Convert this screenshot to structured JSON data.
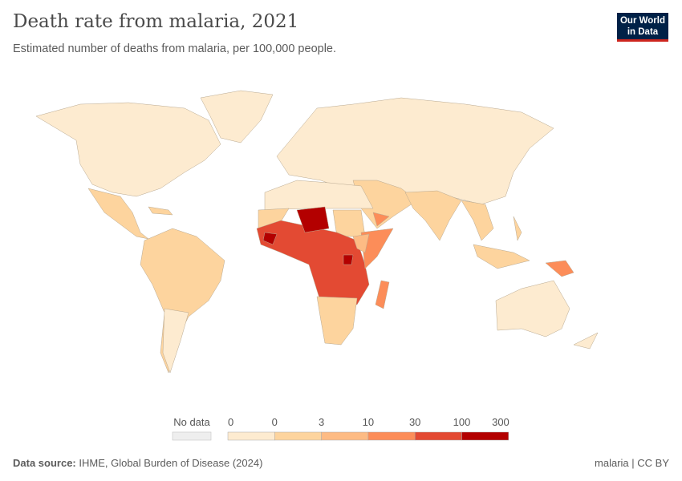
{
  "header": {
    "title": "Death rate from malaria, 2021",
    "subtitle": "Estimated number of deaths from malaria, per 100,000 people.",
    "logo": "Our World in Data"
  },
  "chart_data": {
    "type": "choropleth map",
    "title": "Death rate from malaria, 2021",
    "subtitle": "Estimated number of deaths from malaria, per 100,000 people.",
    "legend": {
      "no_data_label": "No data",
      "bin_labels": [
        "0",
        "0",
        "3",
        "10",
        "30",
        "100",
        "300"
      ],
      "colors": [
        "#fdebd0",
        "#fdd49e",
        "#fdbb84",
        "#fc8d59",
        "#e34a33",
        "#b30000"
      ],
      "no_data_color": "#e8e8e8"
    },
    "regions": [
      {
        "region": "North America, Europe, Russia, China, Australia, North Africa",
        "bin": "0-0"
      },
      {
        "region": "South America, Mexico, Central America, South Asia, Southeast Asia, Southern Africa",
        "bin": "0-3"
      },
      {
        "region": "Horn of Africa, Madagascar, Papua New Guinea",
        "bin": "10-30"
      },
      {
        "region": "Central and West Africa",
        "bin": "30-100"
      },
      {
        "region": "Niger, Sierra Leone, Burkina Faso, Uganda",
        "bin": "100-300"
      }
    ]
  },
  "footer": {
    "source_label": "Data source:",
    "source": "IHME, Global Burden of Disease (2024)",
    "right": "malaria | CC BY"
  }
}
